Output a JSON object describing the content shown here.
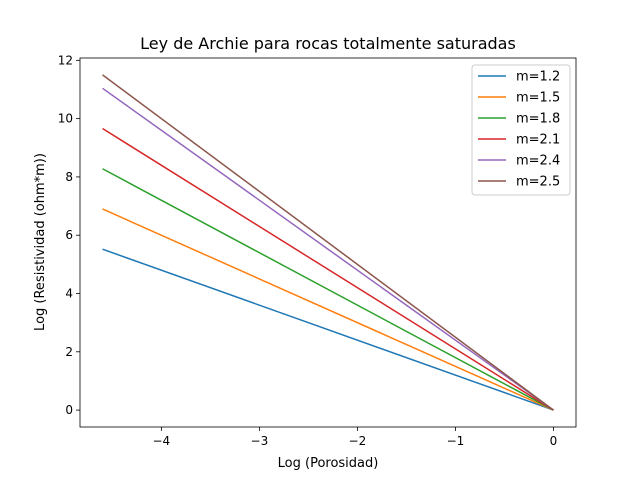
{
  "chart_data": {
    "type": "line",
    "title": "Ley de Archie para  rocas totalmente saturadas",
    "xlabel": "Log (Porosidad)",
    "ylabel": "Log (Resistividad (ohm*m))",
    "xlim": [
      -4.83,
      0.23
    ],
    "ylim": [
      -0.58,
      12.08
    ],
    "x_ticks": [
      -4,
      -3,
      -2,
      -1,
      0
    ],
    "x_tick_labels": [
      "−4",
      "−3",
      "−2",
      "−1",
      "0"
    ],
    "y_ticks": [
      0,
      2,
      4,
      6,
      8,
      10,
      12
    ],
    "y_tick_labels": [
      "0",
      "2",
      "4",
      "6",
      "8",
      "10",
      "12"
    ],
    "grid": false,
    "legend_position": "top-right",
    "x": [
      -4.6,
      0
    ],
    "series": [
      {
        "name": "m=1.2",
        "color": "#1f77b4",
        "values": [
          5.52,
          0
        ]
      },
      {
        "name": "m=1.5",
        "color": "#ff7f0e",
        "values": [
          6.9,
          0
        ]
      },
      {
        "name": "m=1.8",
        "color": "#2ca02c",
        "values": [
          8.28,
          0
        ]
      },
      {
        "name": "m=2.1",
        "color": "#d62728",
        "values": [
          9.66,
          0
        ]
      },
      {
        "name": "m=2.4",
        "color": "#9467bd",
        "values": [
          11.04,
          0
        ]
      },
      {
        "name": "m=2.5",
        "color": "#8c564b",
        "values": [
          11.5,
          0
        ]
      }
    ]
  }
}
